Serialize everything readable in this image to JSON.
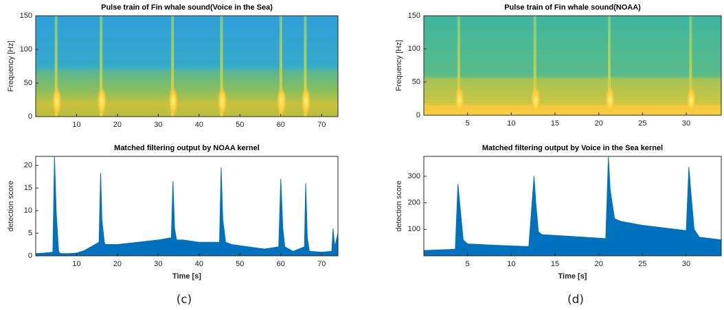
{
  "chart_data": [
    {
      "type": "spectrogram",
      "title": "Pulse train of Fin whale sound(Voice in the Sea)",
      "ylabel": "Frequency [Hz]",
      "x": [
        5,
        16,
        33.5,
        45.5,
        60,
        66
      ],
      "xlim": [
        0,
        74
      ],
      "xticks": [
        10,
        20,
        30,
        40,
        50,
        60,
        70
      ],
      "ylim": [
        0,
        150
      ],
      "yticks": [
        0,
        50,
        100,
        150
      ]
    },
    {
      "type": "area",
      "title": "Matched filtering output by NOAA kernel",
      "xlabel": "Time [s]",
      "ylabel": "detection score",
      "color": "#0072bd",
      "x": [
        0,
        2,
        4.2,
        4.6,
        5,
        5.6,
        6,
        8,
        10,
        12,
        15.5,
        15.9,
        16.2,
        16.8,
        17,
        20,
        25,
        30,
        33.2,
        33.6,
        34,
        34.5,
        36,
        40,
        45,
        45.4,
        45.8,
        46.5,
        48,
        52,
        56,
        59.5,
        60,
        60.5,
        61,
        63,
        65.8,
        66.1,
        66.5,
        67,
        70,
        72.5,
        72.8,
        73.2,
        74
      ],
      "values": [
        0.5,
        0.6,
        0.8,
        22,
        10,
        1,
        0.5,
        0.5,
        0.6,
        1.2,
        3,
        18.3,
        8,
        3,
        2.5,
        2.5,
        3,
        3.5,
        4,
        16.5,
        6,
        3.5,
        3.5,
        3,
        3,
        19.5,
        8,
        3,
        2.5,
        2,
        1.5,
        2,
        17,
        6,
        2,
        1,
        2,
        16,
        4,
        1,
        0.8,
        1,
        6,
        2,
        5
      ],
      "xlim": [
        0,
        74
      ],
      "xticks": [
        10,
        20,
        30,
        40,
        50,
        60,
        70
      ],
      "ylim": [
        0,
        22
      ],
      "yticks": [
        0,
        5,
        10,
        15,
        20
      ]
    },
    {
      "type": "spectrogram",
      "title": "Pulse train of Fin whale sound(NOAA)",
      "ylabel": "Frequency [Hz]",
      "x": [
        4,
        12.7,
        21.2,
        30.5
      ],
      "xlim": [
        0,
        34
      ],
      "xticks": [
        5,
        10,
        15,
        20,
        25,
        30
      ],
      "ylim": [
        0,
        150
      ],
      "yticks": [
        0,
        50,
        100,
        150
      ]
    },
    {
      "type": "area",
      "title": "Matched filtering output by Voice in the Sea kernel",
      "xlabel": "Time [s]",
      "ylabel": "detection score",
      "color": "#0072bd",
      "x": [
        0,
        3.6,
        3.9,
        4.1,
        4.5,
        5,
        8,
        12,
        12.6,
        12.8,
        13.1,
        13.5,
        16,
        20.8,
        21.1,
        21.3,
        21.8,
        22.5,
        25,
        30,
        30.3,
        30.5,
        30.9,
        31.5,
        34
      ],
      "values": [
        20,
        25,
        270,
        200,
        60,
        45,
        40,
        35,
        300,
        200,
        90,
        80,
        75,
        65,
        372,
        250,
        140,
        130,
        115,
        95,
        335,
        250,
        100,
        70,
        60
      ],
      "xlim": [
        0,
        34
      ],
      "xticks": [
        5,
        10,
        15,
        20,
        25,
        30
      ],
      "ylim": [
        0,
        375
      ],
      "yticks": [
        100,
        200,
        300
      ]
    }
  ],
  "captions": [
    "(c)",
    "(d)"
  ]
}
